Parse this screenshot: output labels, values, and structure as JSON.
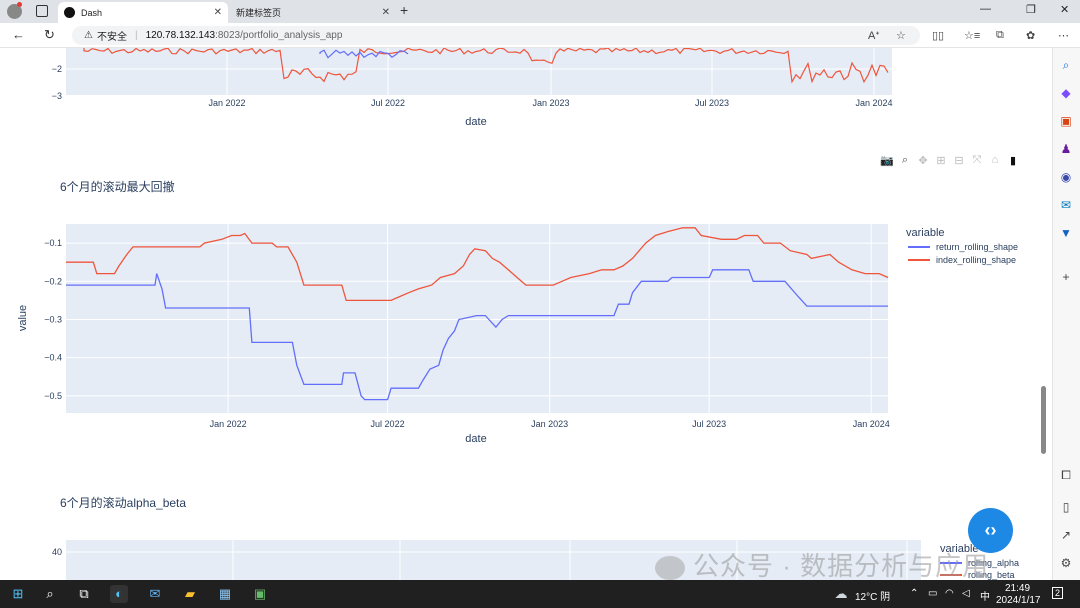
{
  "browser": {
    "tabs": [
      {
        "label": "Dash",
        "active": true
      },
      {
        "label": "新建标签页",
        "active": false
      }
    ],
    "address": {
      "security": "不安全",
      "host": "120.78.132.143",
      "path": ":8023/portfolio_analysis_app"
    }
  },
  "top_chart": {
    "y_ticks": [
      "−2",
      "−3"
    ],
    "x_ticks": [
      "Jan 2022",
      "Jul 2022",
      "Jan 2023",
      "Jul 2023",
      "Jan 2024"
    ],
    "xlabel": "date"
  },
  "drawdown_section": {
    "title": "6个月的滚动最大回撤"
  },
  "chart_data": [
    {
      "type": "line",
      "title": "6个月的滚动最大回撤",
      "xlabel": "date",
      "ylabel": "value",
      "x_ticks": [
        "Jan 2022",
        "Jul 2022",
        "Jan 2023",
        "Jul 2023",
        "Jan 2024"
      ],
      "y_ticks": [
        "−0.1",
        "−0.2",
        "−0.3",
        "−0.4",
        "−0.5"
      ],
      "ylim": [
        -0.545,
        -0.05
      ],
      "xlim": [
        "2021-07-01",
        "2024-01-20"
      ],
      "legend_title": "variable",
      "legend_position": "right",
      "series": [
        {
          "name": "return_rolling_shape",
          "color": "#636efa",
          "points": [
            [
              "2021-07-01",
              -0.21
            ],
            [
              "2021-10-10",
              -0.21
            ],
            [
              "2021-10-12",
              -0.18
            ],
            [
              "2021-10-18",
              -0.22
            ],
            [
              "2021-10-22",
              -0.27
            ],
            [
              "2022-01-25",
              -0.27
            ],
            [
              "2022-01-28",
              -0.36
            ],
            [
              "2022-03-15",
              -0.36
            ],
            [
              "2022-03-20",
              -0.42
            ],
            [
              "2022-03-28",
              -0.47
            ],
            [
              "2022-05-10",
              -0.47
            ],
            [
              "2022-05-12",
              -0.44
            ],
            [
              "2022-05-25",
              -0.44
            ],
            [
              "2022-06-01",
              -0.5
            ],
            [
              "2022-06-05",
              -0.51
            ],
            [
              "2022-07-01",
              -0.51
            ],
            [
              "2022-07-05",
              -0.48
            ],
            [
              "2022-08-05",
              -0.48
            ],
            [
              "2022-08-10",
              -0.46
            ],
            [
              "2022-08-18",
              -0.43
            ],
            [
              "2022-08-28",
              -0.42
            ],
            [
              "2022-09-02",
              -0.38
            ],
            [
              "2022-09-08",
              -0.35
            ],
            [
              "2022-09-15",
              -0.33
            ],
            [
              "2022-09-20",
              -0.3
            ],
            [
              "2022-10-10",
              -0.29
            ],
            [
              "2022-10-20",
              -0.29
            ],
            [
              "2022-10-24",
              -0.3
            ],
            [
              "2022-11-01",
              -0.32
            ],
            [
              "2022-11-08",
              -0.3
            ],
            [
              "2022-11-15",
              -0.29
            ],
            [
              "2023-03-15",
              -0.29
            ],
            [
              "2023-03-20",
              -0.26
            ],
            [
              "2023-04-01",
              -0.26
            ],
            [
              "2023-04-05",
              -0.23
            ],
            [
              "2023-04-15",
              -0.2
            ],
            [
              "2023-05-15",
              -0.2
            ],
            [
              "2023-05-20",
              -0.19
            ],
            [
              "2023-07-01",
              -0.19
            ],
            [
              "2023-07-05",
              -0.17
            ],
            [
              "2023-08-15",
              -0.17
            ],
            [
              "2023-08-20",
              -0.2
            ],
            [
              "2023-09-25",
              -0.2
            ],
            [
              "2023-10-10",
              -0.24
            ],
            [
              "2023-10-20",
              -0.265
            ],
            [
              "2024-01-20",
              -0.265
            ]
          ]
        },
        {
          "name": "index_rolling_shape",
          "color": "#ef553b",
          "points": [
            [
              "2021-07-01",
              -0.15
            ],
            [
              "2021-08-01",
              -0.15
            ],
            [
              "2021-08-05",
              -0.18
            ],
            [
              "2021-08-25",
              -0.18
            ],
            [
              "2021-08-30",
              -0.16
            ],
            [
              "2021-09-08",
              -0.13
            ],
            [
              "2021-09-15",
              -0.11
            ],
            [
              "2021-11-30",
              -0.11
            ],
            [
              "2021-12-05",
              -0.1
            ],
            [
              "2021-12-25",
              -0.09
            ],
            [
              "2022-01-05",
              -0.08
            ],
            [
              "2022-01-15",
              -0.08
            ],
            [
              "2022-01-20",
              -0.075
            ],
            [
              "2022-01-28",
              -0.1
            ],
            [
              "2022-02-20",
              -0.1
            ],
            [
              "2022-02-25",
              -0.11
            ],
            [
              "2022-03-10",
              -0.11
            ],
            [
              "2022-03-20",
              -0.15
            ],
            [
              "2022-03-28",
              -0.21
            ],
            [
              "2022-05-10",
              -0.21
            ],
            [
              "2022-05-15",
              -0.25
            ],
            [
              "2022-07-05",
              -0.25
            ],
            [
              "2022-07-15",
              -0.24
            ],
            [
              "2022-07-25",
              -0.23
            ],
            [
              "2022-08-05",
              -0.22
            ],
            [
              "2022-08-20",
              -0.21
            ],
            [
              "2022-08-30",
              -0.19
            ],
            [
              "2022-09-15",
              -0.18
            ],
            [
              "2022-09-25",
              -0.16
            ],
            [
              "2022-10-02",
              -0.13
            ],
            [
              "2022-10-08",
              -0.115
            ],
            [
              "2022-10-20",
              -0.12
            ],
            [
              "2022-10-28",
              -0.14
            ],
            [
              "2022-11-05",
              -0.15
            ],
            [
              "2022-11-15",
              -0.17
            ],
            [
              "2022-11-25",
              -0.19
            ],
            [
              "2022-12-05",
              -0.21
            ],
            [
              "2023-01-05",
              -0.21
            ],
            [
              "2023-01-15",
              -0.2
            ],
            [
              "2023-01-25",
              -0.19
            ],
            [
              "2023-02-15",
              -0.18
            ],
            [
              "2023-03-01",
              -0.17
            ],
            [
              "2023-03-15",
              -0.17
            ],
            [
              "2023-03-25",
              -0.16
            ],
            [
              "2023-04-05",
              -0.14
            ],
            [
              "2023-04-20",
              -0.1
            ],
            [
              "2023-05-01",
              -0.08
            ],
            [
              "2023-05-15",
              -0.07
            ],
            [
              "2023-06-01",
              -0.06
            ],
            [
              "2023-06-15",
              -0.06
            ],
            [
              "2023-06-22",
              -0.08
            ],
            [
              "2023-07-15",
              -0.09
            ],
            [
              "2023-08-01",
              -0.09
            ],
            [
              "2023-08-10",
              -0.08
            ],
            [
              "2023-08-25",
              -0.08
            ],
            [
              "2023-09-01",
              -0.1
            ],
            [
              "2023-09-20",
              -0.1
            ],
            [
              "2023-10-01",
              -0.12
            ],
            [
              "2023-10-20",
              -0.13
            ],
            [
              "2023-10-25",
              -0.14
            ],
            [
              "2023-11-15",
              -0.13
            ],
            [
              "2023-11-25",
              -0.15
            ],
            [
              "2023-12-10",
              -0.17
            ],
            [
              "2023-12-25",
              -0.18
            ],
            [
              "2024-01-10",
              -0.18
            ],
            [
              "2024-01-20",
              -0.19
            ]
          ]
        }
      ]
    }
  ],
  "alpha_beta_section": {
    "title": "6个月的滚动alpha_beta",
    "y_tick_visible": "40",
    "legend_title": "variable",
    "legend_items": [
      "rolling_alpha",
      "rolling_beta"
    ]
  },
  "watermark": "公众号 · 数据分析与应用",
  "taskbar": {
    "weather": "12°C 阴",
    "lang": "中",
    "time": "21:49",
    "date": "2024/1/17",
    "notifications": "2"
  },
  "colors": {
    "blue": "#636efa",
    "red": "#ef553b",
    "plot_bg": "#e5ecf6"
  }
}
